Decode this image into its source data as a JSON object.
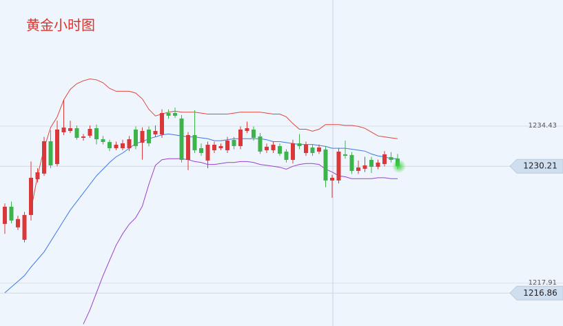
{
  "chart_data": {
    "type": "candlestick",
    "title": "黄金小时图",
    "ylim": [
      1213.4,
      1247.7
    ],
    "yticks": [
      1234.43,
      1217.91
    ],
    "grid": true,
    "up_color": "#d9383a",
    "down_color": "#3cb44b",
    "ohlc": [
      [
        1224.14,
        1226.3,
        1223.1,
        1225.95
      ],
      [
        1225.95,
        1226.5,
        1224.2,
        1224.5
      ],
      [
        1223.78,
        1225.0,
        1223.5,
        1224.65
      ],
      [
        1222.47,
        1225.4,
        1222.2,
        1225.08
      ],
      [
        1225.08,
        1230.7,
        1224.5,
        1228.99
      ],
      [
        1228.85,
        1230.0,
        1228.5,
        1229.57
      ],
      [
        1229.43,
        1233.3,
        1229.2,
        1232.84
      ],
      [
        1232.84,
        1234.0,
        1230.0,
        1230.3
      ],
      [
        1230.44,
        1235.0,
        1230.2,
        1234.07
      ],
      [
        1233.78,
        1237.2,
        1233.5,
        1234.28
      ],
      [
        1233.92,
        1235.0,
        1233.7,
        1234.21
      ],
      [
        1234.21,
        1234.5,
        1233.0,
        1233.2
      ],
      [
        1233.2,
        1233.6,
        1232.9,
        1233.34
      ],
      [
        1233.42,
        1234.5,
        1233.2,
        1234.14
      ],
      [
        1234.21,
        1234.6,
        1232.5,
        1233.05
      ],
      [
        1233.05,
        1233.4,
        1232.5,
        1232.76
      ],
      [
        1232.76,
        1233.0,
        1231.8,
        1232.11
      ],
      [
        1232.11,
        1232.8,
        1231.9,
        1232.47
      ],
      [
        1232.11,
        1233.0,
        1231.9,
        1232.62
      ],
      [
        1232.11,
        1233.4,
        1231.8,
        1233.05
      ],
      [
        1234.07,
        1234.4,
        1232.0,
        1232.33
      ],
      [
        1232.69,
        1234.3,
        1230.9,
        1233.92
      ],
      [
        1234.07,
        1234.4,
        1232.3,
        1232.62
      ],
      [
        1233.56,
        1234.5,
        1233.3,
        1233.92
      ],
      [
        1233.56,
        1236.2,
        1233.2,
        1235.81
      ],
      [
        1235.81,
        1236.2,
        1235.2,
        1235.52
      ],
      [
        1235.81,
        1236.4,
        1235.3,
        1235.52
      ],
      [
        1235.23,
        1235.6,
        1230.6,
        1230.88
      ],
      [
        1230.88,
        1233.8,
        1229.8,
        1233.49
      ],
      [
        1233.49,
        1236.1,
        1231.6,
        1231.89
      ],
      [
        1232.11,
        1232.6,
        1231.3,
        1231.6
      ],
      [
        1230.81,
        1232.8,
        1230.0,
        1232.47
      ],
      [
        1231.89,
        1232.8,
        1231.6,
        1232.47
      ],
      [
        1232.11,
        1232.6,
        1231.9,
        1232.33
      ],
      [
        1231.89,
        1233.3,
        1231.6,
        1232.91
      ],
      [
        1232.98,
        1233.3,
        1232.0,
        1232.33
      ],
      [
        1232.33,
        1234.4,
        1232.0,
        1234.07
      ],
      [
        1233.92,
        1234.9,
        1233.7,
        1234.21
      ],
      [
        1234.07,
        1234.4,
        1232.9,
        1233.2
      ],
      [
        1233.34,
        1233.7,
        1231.5,
        1231.75
      ],
      [
        1231.89,
        1232.6,
        1231.6,
        1232.26
      ],
      [
        1231.89,
        1232.8,
        1231.6,
        1232.47
      ],
      [
        1232.33,
        1232.6,
        1231.3,
        1231.53
      ],
      [
        1231.75,
        1232.0,
        1230.6,
        1230.88
      ],
      [
        1230.88,
        1233.0,
        1230.5,
        1232.62
      ],
      [
        1232.62,
        1233.6,
        1232.0,
        1232.33
      ],
      [
        1231.6,
        1232.8,
        1231.3,
        1232.47
      ],
      [
        1232.18,
        1232.5,
        1231.3,
        1231.6
      ],
      [
        1231.75,
        1232.5,
        1231.5,
        1232.18
      ],
      [
        1231.97,
        1232.3,
        1228.0,
        1228.71
      ],
      [
        1228.71,
        1229.3,
        1226.9,
        1228.99
      ],
      [
        1228.71,
        1232.1,
        1228.4,
        1231.75
      ],
      [
        1231.46,
        1232.9,
        1231.0,
        1231.31
      ],
      [
        1231.39,
        1231.7,
        1229.4,
        1229.72
      ],
      [
        1229.72,
        1230.8,
        1229.4,
        1230.08
      ],
      [
        1229.94,
        1231.2,
        1229.6,
        1230.3
      ],
      [
        1230.88,
        1231.2,
        1229.5,
        1230.15
      ],
      [
        1230.15,
        1230.9,
        1229.9,
        1230.59
      ],
      [
        1230.44,
        1231.8,
        1230.2,
        1231.46
      ],
      [
        1231.17,
        1231.7,
        1230.6,
        1230.88
      ],
      [
        1231.02,
        1231.5,
        1229.9,
        1230.21
      ]
    ],
    "lines": [
      {
        "color": "#e0463a",
        "values": [
          null,
          null,
          null,
          null,
          1225.6,
          1229.2,
          1232.1,
          1234.3,
          1235.4,
          1237.2,
          1238.3,
          1238.9,
          1239.2,
          1239.4,
          1239.3,
          1239.0,
          1238.4,
          1238.1,
          1238.1,
          1238.1,
          1237.9,
          1237.3,
          1236.2,
          1235.5,
          1235.7,
          1235.9,
          1236.0,
          1235.9,
          1235.9,
          1235.9,
          1235.8,
          1235.7,
          1235.7,
          1235.7,
          1235.7,
          1235.8,
          1235.9,
          1235.9,
          1235.9,
          1235.9,
          1235.8,
          1235.7,
          1235.7,
          1235.4,
          1234.7,
          1234.1,
          1234.1,
          1233.9,
          1234.1,
          1234.6,
          1234.6,
          1234.6,
          1234.5,
          1234.5,
          1234.4,
          1234.2,
          1233.8,
          1233.4,
          1233.3,
          1233.2,
          1233.1
        ]
      },
      {
        "color": "#3b78e7",
        "values": [
          1216.9,
          1217.5,
          1218.1,
          1218.7,
          1219.6,
          1220.4,
          1221.2,
          1222.3,
          1223.4,
          1224.5,
          1225.6,
          1226.5,
          1227.4,
          1228.3,
          1229.2,
          1229.9,
          1230.6,
          1231.2,
          1231.6,
          1232.1,
          1232.6,
          1232.8,
          1233.1,
          1233.3,
          1233.5,
          1233.6,
          1233.5,
          1233.4,
          1233.3,
          1233.3,
          1233.2,
          1233.1,
          1232.9,
          1232.9,
          1233.0,
          1233.1,
          1233.1,
          1233.1,
          1233.1,
          1233.1,
          1233.0,
          1232.8,
          1232.8,
          1232.7,
          1232.6,
          1232.5,
          1232.5,
          1232.5,
          1232.4,
          1232.3,
          1232.1,
          1232.1,
          1232.1,
          1232.0,
          1231.9,
          1231.8,
          1231.5,
          1231.3,
          1231.2,
          1231.0,
          1231.0
        ]
      },
      {
        "color": "#9b3fd0",
        "values": [
          null,
          null,
          null,
          null,
          null,
          null,
          null,
          null,
          null,
          null,
          null,
          null,
          1213.6,
          1215.1,
          1216.9,
          1218.7,
          1220.3,
          1221.9,
          1223.1,
          1224.1,
          1224.8,
          1226.0,
          1228.3,
          1230.3,
          1230.9,
          1231.0,
          1231.0,
          1231.0,
          1230.9,
          1230.7,
          1230.6,
          1230.4,
          1230.4,
          1230.5,
          1230.6,
          1230.6,
          1230.7,
          1230.7,
          1230.6,
          1230.4,
          1230.3,
          1230.2,
          1230.1,
          1229.9,
          1230.2,
          1230.4,
          1230.5,
          1230.5,
          1230.4,
          1229.9,
          1229.6,
          1229.2,
          1229.1,
          1228.9,
          1228.9,
          1228.9,
          1228.9,
          1229.0,
          1229.0,
          1228.9,
          1228.9
        ]
      }
    ],
    "price_tags": [
      {
        "value": 1230.21,
        "label": "1230.21"
      },
      {
        "value": 1216.86,
        "label": "1216.86"
      }
    ]
  }
}
